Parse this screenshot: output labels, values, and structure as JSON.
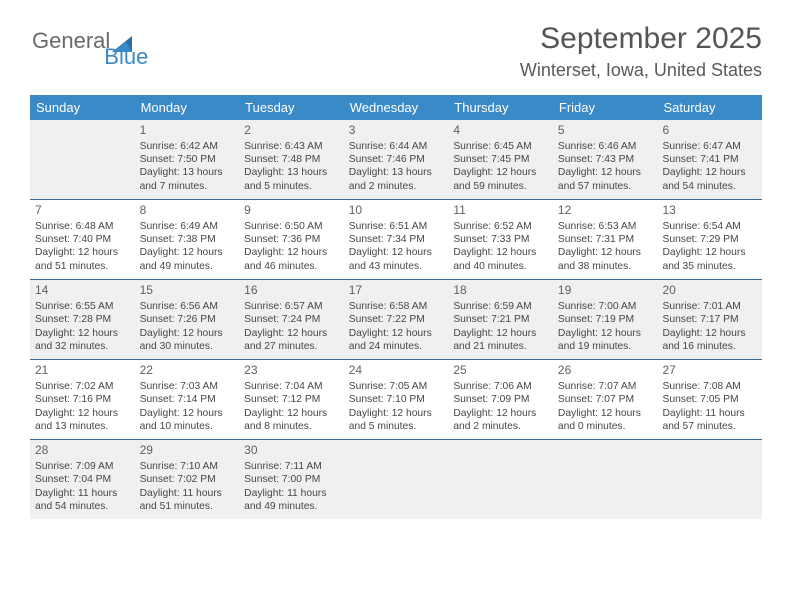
{
  "brand": {
    "part1": "General",
    "part2": "Blue"
  },
  "title": "September 2025",
  "location": "Winterset, Iowa, United States",
  "colors": {
    "header_bg": "#3a8ac8",
    "header_text": "#ffffff",
    "rule": "#3a6a9a",
    "shaded_bg": "#f0f0f0",
    "text": "#474747",
    "title_color": "#555555"
  },
  "dayNames": [
    "Sunday",
    "Monday",
    "Tuesday",
    "Wednesday",
    "Thursday",
    "Friday",
    "Saturday"
  ],
  "weeks": [
    [
      {
        "num": "",
        "sunrise": "",
        "sunset": "",
        "daylight": ""
      },
      {
        "num": "1",
        "sunrise": "6:42 AM",
        "sunset": "7:50 PM",
        "daylight": "13 hours and 7 minutes."
      },
      {
        "num": "2",
        "sunrise": "6:43 AM",
        "sunset": "7:48 PM",
        "daylight": "13 hours and 5 minutes."
      },
      {
        "num": "3",
        "sunrise": "6:44 AM",
        "sunset": "7:46 PM",
        "daylight": "13 hours and 2 minutes."
      },
      {
        "num": "4",
        "sunrise": "6:45 AM",
        "sunset": "7:45 PM",
        "daylight": "12 hours and 59 minutes."
      },
      {
        "num": "5",
        "sunrise": "6:46 AM",
        "sunset": "7:43 PM",
        "daylight": "12 hours and 57 minutes."
      },
      {
        "num": "6",
        "sunrise": "6:47 AM",
        "sunset": "7:41 PM",
        "daylight": "12 hours and 54 minutes."
      }
    ],
    [
      {
        "num": "7",
        "sunrise": "6:48 AM",
        "sunset": "7:40 PM",
        "daylight": "12 hours and 51 minutes."
      },
      {
        "num": "8",
        "sunrise": "6:49 AM",
        "sunset": "7:38 PM",
        "daylight": "12 hours and 49 minutes."
      },
      {
        "num": "9",
        "sunrise": "6:50 AM",
        "sunset": "7:36 PM",
        "daylight": "12 hours and 46 minutes."
      },
      {
        "num": "10",
        "sunrise": "6:51 AM",
        "sunset": "7:34 PM",
        "daylight": "12 hours and 43 minutes."
      },
      {
        "num": "11",
        "sunrise": "6:52 AM",
        "sunset": "7:33 PM",
        "daylight": "12 hours and 40 minutes."
      },
      {
        "num": "12",
        "sunrise": "6:53 AM",
        "sunset": "7:31 PM",
        "daylight": "12 hours and 38 minutes."
      },
      {
        "num": "13",
        "sunrise": "6:54 AM",
        "sunset": "7:29 PM",
        "daylight": "12 hours and 35 minutes."
      }
    ],
    [
      {
        "num": "14",
        "sunrise": "6:55 AM",
        "sunset": "7:28 PM",
        "daylight": "12 hours and 32 minutes."
      },
      {
        "num": "15",
        "sunrise": "6:56 AM",
        "sunset": "7:26 PM",
        "daylight": "12 hours and 30 minutes."
      },
      {
        "num": "16",
        "sunrise": "6:57 AM",
        "sunset": "7:24 PM",
        "daylight": "12 hours and 27 minutes."
      },
      {
        "num": "17",
        "sunrise": "6:58 AM",
        "sunset": "7:22 PM",
        "daylight": "12 hours and 24 minutes."
      },
      {
        "num": "18",
        "sunrise": "6:59 AM",
        "sunset": "7:21 PM",
        "daylight": "12 hours and 21 minutes."
      },
      {
        "num": "19",
        "sunrise": "7:00 AM",
        "sunset": "7:19 PM",
        "daylight": "12 hours and 19 minutes."
      },
      {
        "num": "20",
        "sunrise": "7:01 AM",
        "sunset": "7:17 PM",
        "daylight": "12 hours and 16 minutes."
      }
    ],
    [
      {
        "num": "21",
        "sunrise": "7:02 AM",
        "sunset": "7:16 PM",
        "daylight": "12 hours and 13 minutes."
      },
      {
        "num": "22",
        "sunrise": "7:03 AM",
        "sunset": "7:14 PM",
        "daylight": "12 hours and 10 minutes."
      },
      {
        "num": "23",
        "sunrise": "7:04 AM",
        "sunset": "7:12 PM",
        "daylight": "12 hours and 8 minutes."
      },
      {
        "num": "24",
        "sunrise": "7:05 AM",
        "sunset": "7:10 PM",
        "daylight": "12 hours and 5 minutes."
      },
      {
        "num": "25",
        "sunrise": "7:06 AM",
        "sunset": "7:09 PM",
        "daylight": "12 hours and 2 minutes."
      },
      {
        "num": "26",
        "sunrise": "7:07 AM",
        "sunset": "7:07 PM",
        "daylight": "12 hours and 0 minutes."
      },
      {
        "num": "27",
        "sunrise": "7:08 AM",
        "sunset": "7:05 PM",
        "daylight": "11 hours and 57 minutes."
      }
    ],
    [
      {
        "num": "28",
        "sunrise": "7:09 AM",
        "sunset": "7:04 PM",
        "daylight": "11 hours and 54 minutes."
      },
      {
        "num": "29",
        "sunrise": "7:10 AM",
        "sunset": "7:02 PM",
        "daylight": "11 hours and 51 minutes."
      },
      {
        "num": "30",
        "sunrise": "7:11 AM",
        "sunset": "7:00 PM",
        "daylight": "11 hours and 49 minutes."
      },
      {
        "num": "",
        "sunrise": "",
        "sunset": "",
        "daylight": ""
      },
      {
        "num": "",
        "sunrise": "",
        "sunset": "",
        "daylight": ""
      },
      {
        "num": "",
        "sunrise": "",
        "sunset": "",
        "daylight": ""
      },
      {
        "num": "",
        "sunrise": "",
        "sunset": "",
        "daylight": ""
      }
    ]
  ],
  "labels": {
    "sunrise": "Sunrise:",
    "sunset": "Sunset:",
    "daylight": "Daylight:"
  },
  "shadedRows": [
    0,
    2,
    4
  ]
}
